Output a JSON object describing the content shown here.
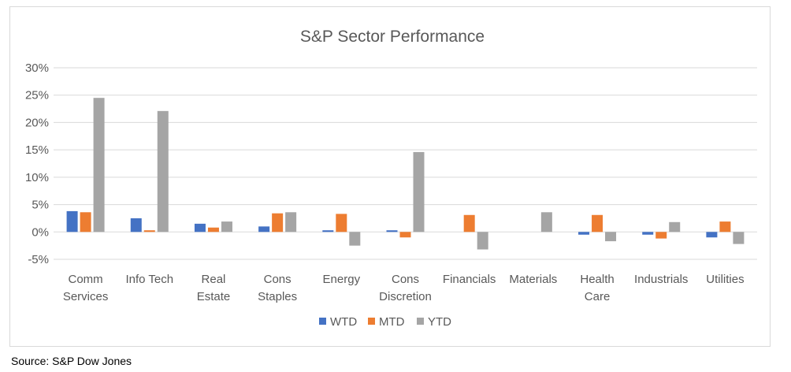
{
  "source": "Source: S&P Dow Jones",
  "chart_data": {
    "type": "bar",
    "title": "S&P Sector Performance",
    "xlabel": "",
    "ylabel": "",
    "ylim": [
      -0.05,
      0.3
    ],
    "yticks": [
      -0.05,
      0,
      0.05,
      0.1,
      0.15,
      0.2,
      0.25,
      0.3
    ],
    "ytick_labels": [
      "-5%",
      "0%",
      "5%",
      "10%",
      "15%",
      "20%",
      "25%",
      "30%"
    ],
    "grid": true,
    "legend_position": "bottom",
    "categories": [
      [
        "Comm",
        "Services"
      ],
      [
        "Info Tech"
      ],
      [
        "Real",
        "Estate"
      ],
      [
        "Cons",
        "Staples"
      ],
      [
        "Energy"
      ],
      [
        "Cons",
        "Discretion"
      ],
      [
        "Financials"
      ],
      [
        "Materials"
      ],
      [
        "Health",
        "Care"
      ],
      [
        "Industrials"
      ],
      [
        "Utilities"
      ]
    ],
    "series": [
      {
        "name": "WTD",
        "color": "#4472C4",
        "values": [
          0.038,
          0.025,
          0.015,
          0.01,
          0.003,
          0.003,
          0.0,
          0.0,
          -0.005,
          -0.005,
          -0.01
        ]
      },
      {
        "name": "MTD",
        "color": "#ED7D31",
        "values": [
          0.036,
          0.003,
          0.008,
          0.034,
          0.033,
          -0.01,
          0.031,
          0.0,
          0.031,
          -0.012,
          0.019
        ]
      },
      {
        "name": "YTD",
        "color": "#A5A5A5",
        "values": [
          0.245,
          0.221,
          0.019,
          0.036,
          -0.025,
          0.146,
          -0.032,
          0.036,
          -0.017,
          0.018,
          -0.022
        ]
      }
    ]
  }
}
